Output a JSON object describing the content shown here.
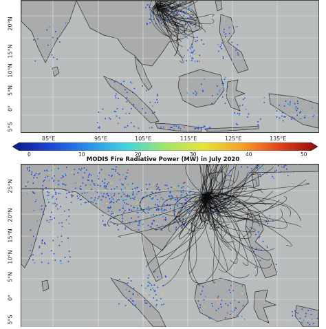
{
  "colors": {
    "sea": "#b9bcbd",
    "land": "#a9abac",
    "coast": "#2a2a2a",
    "grid": "#e6e6e6",
    "trajectory": "#0b0b0b",
    "colormap": [
      "#0b1a80",
      "#1f45d6",
      "#2a8fe8",
      "#45d3e0",
      "#9fe56a",
      "#e6e43a",
      "#f4a12a",
      "#e2421e",
      "#8e0b0b"
    ]
  },
  "map_top": {
    "lat_labels": [
      "20°N",
      "15°N",
      "10°N",
      "5°N",
      "0°",
      "5°S"
    ],
    "lon_labels": [
      "85°E",
      "95°E",
      "105°E",
      "115°E",
      "125°E",
      "135°E"
    ]
  },
  "map_bottom": {
    "lat_labels": [
      "25°N",
      "20°N",
      "15°N",
      "10°N",
      "5°N",
      "0°",
      "5°S"
    ]
  },
  "colorbar": {
    "min": 0,
    "max": 50,
    "ticks": [
      "0",
      "10",
      "20",
      "30",
      "40",
      "50"
    ],
    "title": "MODIS Fire Radiative Power (MW) in July 2020"
  }
}
